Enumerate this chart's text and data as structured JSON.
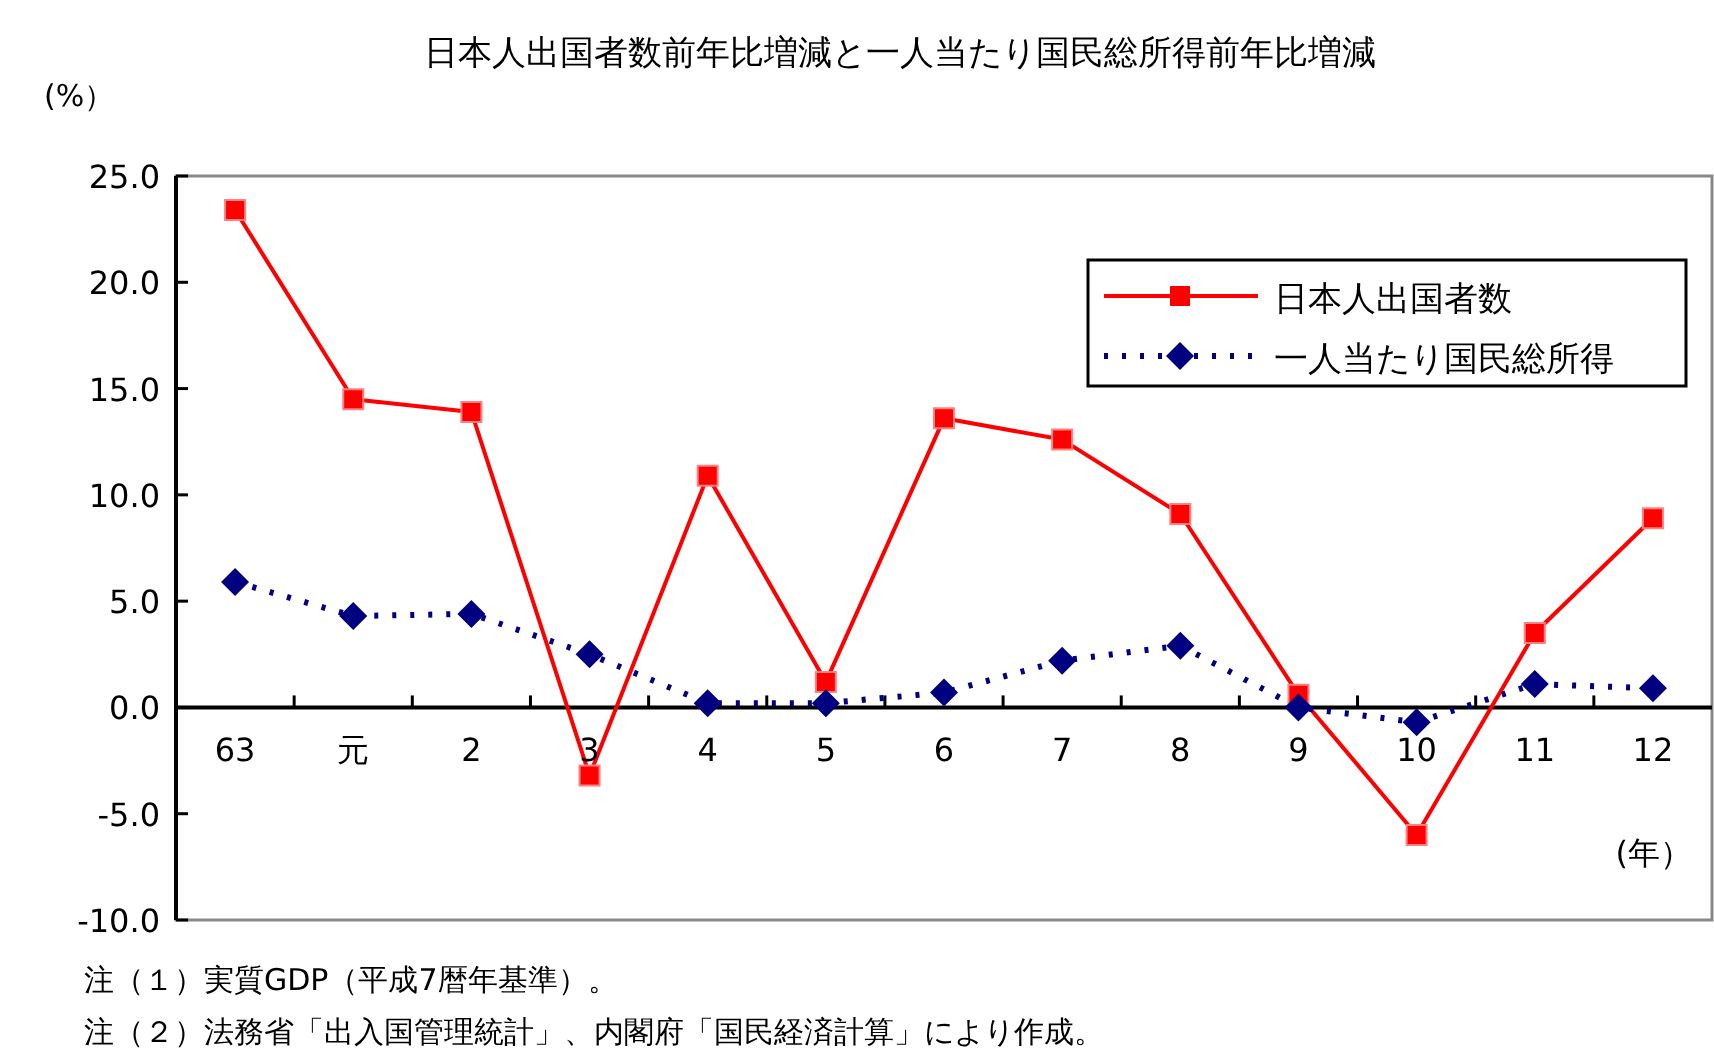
{
  "chart_data": {
    "type": "line",
    "title": "日本人出国者数前年比増減と一人当たり国民総所得前年比増減",
    "ylabel": "(%）",
    "xlabel": "(年）",
    "categories": [
      "63",
      "元",
      "2",
      "3",
      "4",
      "5",
      "6",
      "7",
      "8",
      "9",
      "10",
      "11",
      "12"
    ],
    "series": [
      {
        "name": "日本人出国者数",
        "color": "#ff0000",
        "marker": "square",
        "line_style": "solid",
        "values": [
          23.4,
          14.5,
          13.9,
          -3.2,
          10.9,
          1.2,
          13.6,
          12.6,
          9.1,
          0.6,
          -6.0,
          3.5,
          8.9
        ]
      },
      {
        "name": "一人当たり国民総所得",
        "color": "#000080",
        "marker": "diamond",
        "line_style": "dotted",
        "values": [
          5.9,
          4.3,
          4.4,
          2.5,
          0.2,
          0.2,
          0.7,
          2.2,
          2.9,
          0.0,
          -0.7,
          1.1,
          0.9
        ]
      }
    ],
    "ylim": [
      -10,
      25
    ],
    "yticks": [
      {
        "value": -10,
        "label": "-10.0"
      },
      {
        "value": -5,
        "label": "-5.0"
      },
      {
        "value": 0,
        "label": "0.0"
      },
      {
        "value": 5,
        "label": "5.0"
      },
      {
        "value": 10,
        "label": "10.0"
      },
      {
        "value": 15,
        "label": "15.0"
      },
      {
        "value": 20,
        "label": "20.0"
      },
      {
        "value": 25,
        "label": "25.0"
      }
    ],
    "grid": false,
    "legend": "top right",
    "annotations": [
      "注（１）実質GDP（平成7暦年基準）。",
      "注（２）法務省「出入国管理統計」、内閣府「国民経済計算」により作成。"
    ]
  }
}
